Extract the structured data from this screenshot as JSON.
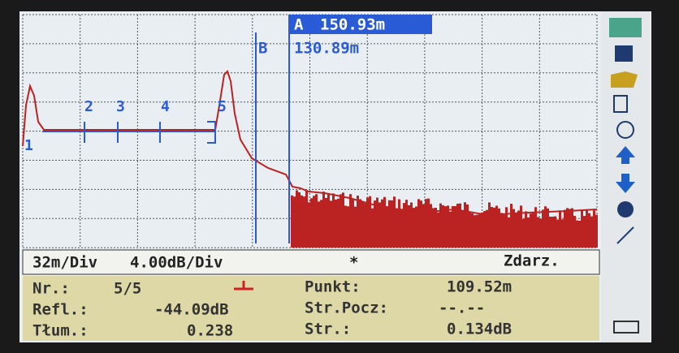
{
  "cursors": {
    "a": {
      "label": "A",
      "value": "150.93m"
    },
    "b": {
      "label": "B",
      "value": "130.89m"
    }
  },
  "events": [
    "1",
    "2",
    "3",
    "4",
    "5"
  ],
  "status_bar": {
    "horizontal_scale": "32m/Div",
    "vertical_scale": "4.00dB/Div",
    "marker": "*",
    "mode": "Zdarz."
  },
  "info": {
    "number": {
      "label": "Nr.:",
      "value": "5/5"
    },
    "point": {
      "label": "Punkt:",
      "value": "109.52m"
    },
    "reflectance": {
      "label": "Refl.:",
      "value": "-44.09dB"
    },
    "start_loss": {
      "label": "Str.Pocz:",
      "value": "--.--"
    },
    "attenuation": {
      "label": "Tłum.:",
      "value": "0.238"
    },
    "loss": {
      "label": "Str.:",
      "value": "0.134dB"
    }
  }
}
